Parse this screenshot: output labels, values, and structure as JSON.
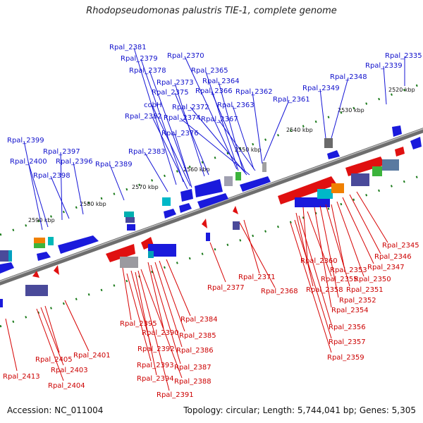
{
  "title": "Rhodopseudomonas palustris TIE-1, complete genome",
  "footer": {
    "accession": "Accession: NC_011004",
    "topology": "Topology: circular; Length: 5,744,041 bp; Genes: 5,305"
  },
  "colors": {
    "forward": "#1a1adc",
    "reverse": "#e01010",
    "backbone": "#808080",
    "tick": "#1a7a1a"
  },
  "kbp_labels": [
    "2520 kbp",
    "2530 kbp",
    "2540 kbp",
    "2550 kbp",
    "2560 kbp",
    "2570 kbp",
    "2580 kbp",
    "2590 kbp"
  ],
  "forward_genes": [
    "Rpal_2381",
    "Rpal_2379",
    "Rpal_2378",
    "Rpal_2373",
    "Rpal_2375",
    "cobH",
    "Rpal_2382",
    "Rpal_2376",
    "Rpal_2383",
    "Rpal_2370",
    "Rpal_2365",
    "Rpal_2364",
    "Rpal_2366",
    "Rpal_2372",
    "Rpal_2374",
    "Rpal_2363",
    "Rpal_2367",
    "Rpal_2362",
    "Rpal_2361",
    "Rpal_2349",
    "Rpal_2348",
    "Rpal_2339",
    "Rpal_2335",
    "Rpal_2399",
    "Rpal_2397",
    "Rpal_2400",
    "Rpal_2396",
    "Rpal_2398",
    "Rpal_2389"
  ],
  "reverse_genes": [
    "Rpal_2345",
    "Rpal_2346",
    "Rpal_2347",
    "Rpal_2360",
    "Rpal_2353",
    "Rpal_2355",
    "Rpal_2350",
    "Rpal_2358",
    "Rpal_2351",
    "Rpal_2352",
    "Rpal_2354",
    "Rpal_2356",
    "Rpal_2357",
    "Rpal_2359",
    "Rpal_2371",
    "Rpal_2368",
    "Rpal_2377",
    "Rpal_2384",
    "Rpal_2395",
    "Rpal_2390",
    "Rpal_2385",
    "Rpal_2392",
    "Rpal_2386",
    "Rpal_2393",
    "Rpal_2387",
    "Rpal_2394",
    "Rpal_2388",
    "Rpal_2391",
    "Rpal_2401",
    "Rpal_2405",
    "Rpal_2403",
    "Rpal_2404",
    "Rpal_2413"
  ]
}
